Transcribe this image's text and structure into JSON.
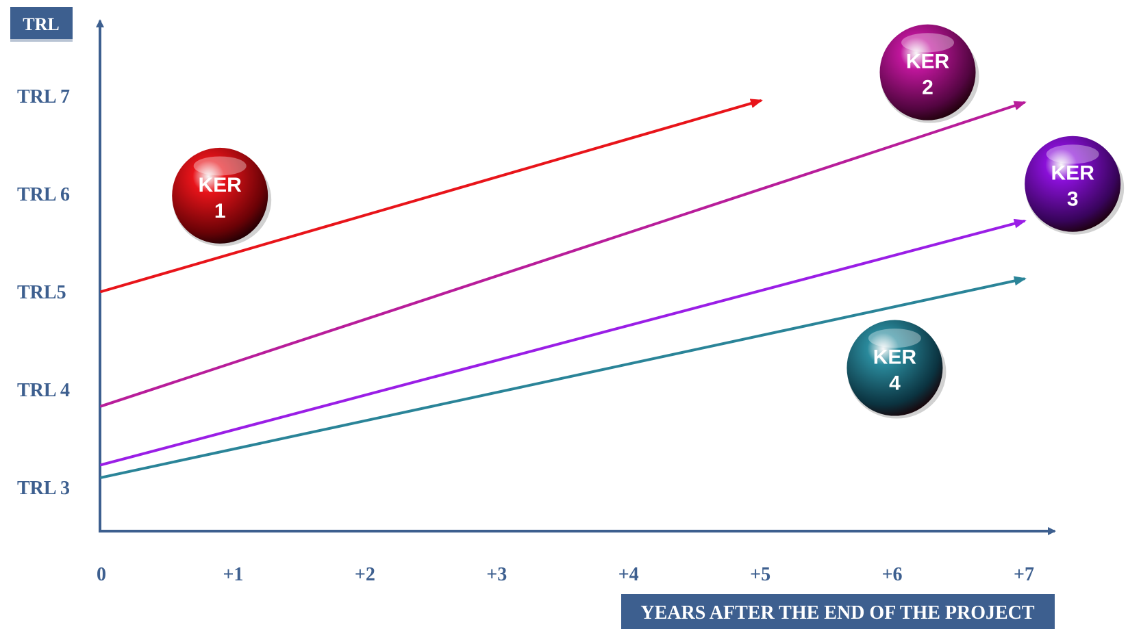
{
  "chart_data": {
    "type": "line",
    "y_axis_title": "TRL",
    "x_axis_title": "YEARS AFTER THE END OF THE PROJECT",
    "x_ticks": [
      "0",
      "+1",
      "+2",
      "+3",
      "+4",
      "+5",
      "+6",
      "+7"
    ],
    "x_values": [
      0,
      1,
      2,
      3,
      4,
      5,
      6,
      7
    ],
    "y_ticks": [
      {
        "value": 3,
        "label": "TRL 3"
      },
      {
        "value": 4,
        "label": "TRL 4"
      },
      {
        "value": 5,
        "label": "TRL5"
      },
      {
        "value": 6,
        "label": "TRL 6"
      },
      {
        "value": 7,
        "label": "TRL 7"
      }
    ],
    "xlim": [
      0,
      7
    ],
    "ylim": [
      2.5,
      7.5
    ],
    "grid": true,
    "series": [
      {
        "name": "KER 1",
        "color": "#e8141a",
        "x": [
          0,
          5
        ],
        "y": [
          5.0,
          6.95
        ]
      },
      {
        "name": "KER 2",
        "color": "#b81d9a",
        "x": [
          0,
          7
        ],
        "y": [
          3.83,
          6.93
        ]
      },
      {
        "name": "KER 3",
        "color": "#9a1ee6",
        "x": [
          0,
          7
        ],
        "y": [
          3.23,
          5.72
        ]
      },
      {
        "name": "KER 4",
        "color": "#2a8498",
        "x": [
          0,
          7
        ],
        "y": [
          3.1,
          5.13
        ]
      }
    ],
    "ker_bubbles": [
      {
        "line1": "KER",
        "line2": "1",
        "x": 0.9,
        "y": 5.98,
        "color": "#e8141a",
        "dark": "#6a0206"
      },
      {
        "line1": "KER",
        "line2": "2",
        "x": 6.27,
        "y": 7.24,
        "color": "#c0169c",
        "dark": "#520540"
      },
      {
        "line1": "KER",
        "line2": "3",
        "x": 7.37,
        "y": 6.1,
        "color": "#8a10d8",
        "dark": "#38045c"
      },
      {
        "line1": "KER",
        "line2": "4",
        "x": 6.02,
        "y": 4.22,
        "color": "#2a8a9c",
        "dark": "#0b3340"
      }
    ]
  }
}
